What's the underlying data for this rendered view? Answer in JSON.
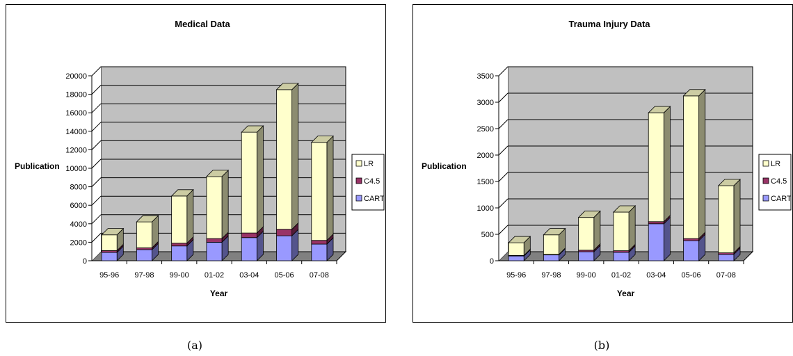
{
  "chart_data": [
    {
      "type": "bar",
      "stacked": true,
      "title": "Medical Data",
      "xlabel": "Year",
      "ylabel": "Publication",
      "categories": [
        "95-96",
        "97-98",
        "99-00",
        "01-02",
        "03-04",
        "05-06",
        "07-08"
      ],
      "ylim": [
        0,
        20000
      ],
      "yticks": [
        0,
        2000,
        4000,
        6000,
        8000,
        10000,
        12000,
        14000,
        16000,
        18000,
        20000
      ],
      "grid": true,
      "legend": "right",
      "series": [
        {
          "name": "CART",
          "color": "#9999ff",
          "values": [
            900,
            1200,
            1600,
            2000,
            2500,
            2700,
            1800
          ]
        },
        {
          "name": "C4.5",
          "color": "#993366",
          "values": [
            200,
            200,
            300,
            400,
            500,
            700,
            400
          ]
        },
        {
          "name": "LR",
          "color": "#ffffcc",
          "values": [
            1700,
            2800,
            5100,
            6700,
            10900,
            15100,
            10600
          ]
        }
      ]
    },
    {
      "type": "bar",
      "stacked": true,
      "title": "Trauma Injury Data",
      "xlabel": "Year",
      "ylabel": "Publication",
      "categories": [
        "95-96",
        "97-98",
        "99-00",
        "01-02",
        "03-04",
        "05-06",
        "07-08"
      ],
      "ylim": [
        0,
        3500
      ],
      "yticks": [
        0,
        500,
        1000,
        1500,
        2000,
        2500,
        3000,
        3500
      ],
      "grid": true,
      "legend": "right",
      "series": [
        {
          "name": "CART",
          "color": "#9999ff",
          "values": [
            90,
            110,
            170,
            160,
            700,
            380,
            120
          ]
        },
        {
          "name": "C4.5",
          "color": "#993366",
          "values": [
            10,
            10,
            30,
            30,
            40,
            40,
            30
          ]
        },
        {
          "name": "LR",
          "color": "#ffffcc",
          "values": [
            240,
            370,
            620,
            730,
            2060,
            2700,
            1270
          ]
        }
      ]
    }
  ],
  "captions": [
    "(a)",
    "(b)"
  ]
}
